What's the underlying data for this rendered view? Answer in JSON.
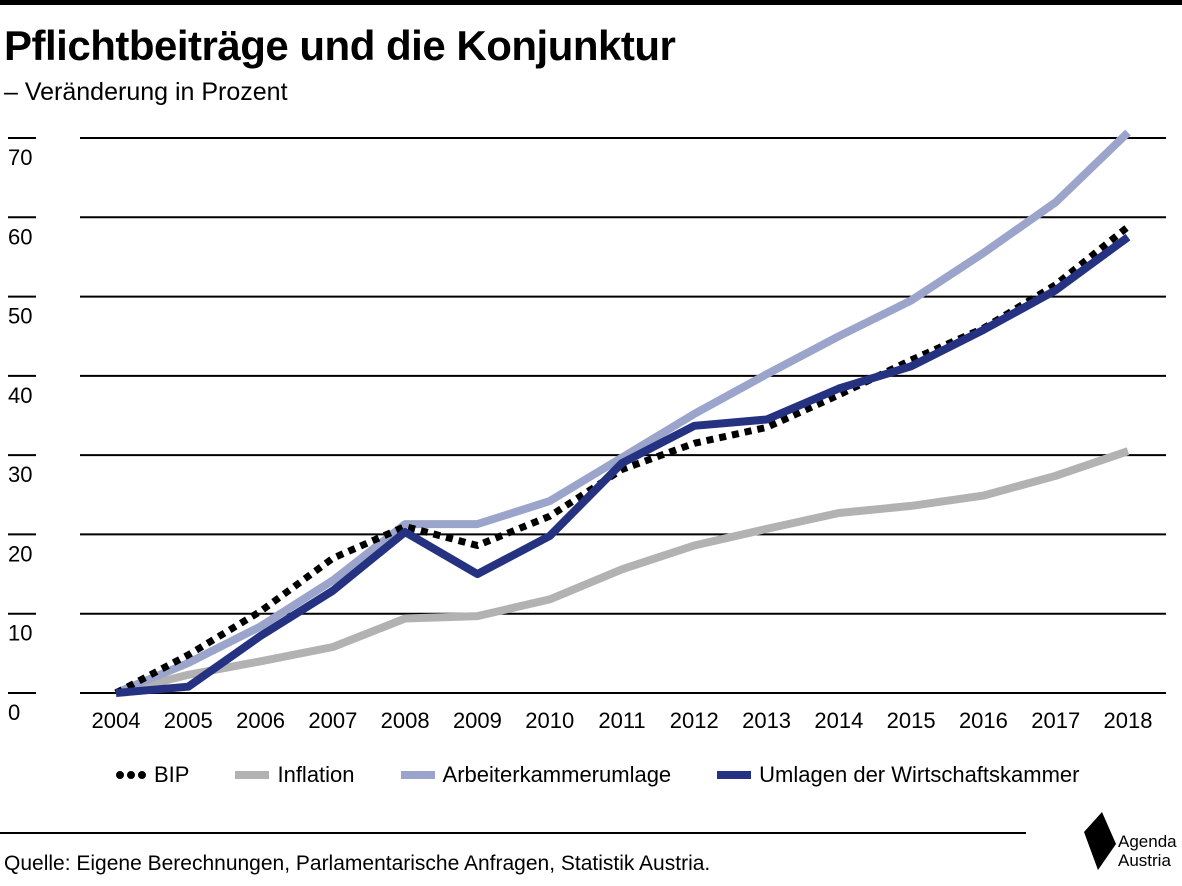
{
  "header": {
    "title": "Pflichtbeiträge und die Konjunktur",
    "subtitle": "– Veränderung in Prozent"
  },
  "chart_data": {
    "type": "line",
    "title": "Pflichtbeiträge und die Konjunktur",
    "subtitle": "– Veränderung in Prozent",
    "xlabel": "",
    "ylabel": "",
    "ylim": [
      0,
      70
    ],
    "yticks": [
      0,
      10,
      20,
      30,
      40,
      50,
      60,
      70
    ],
    "grid": true,
    "legend_position": "bottom",
    "x": [
      "2004",
      "2005",
      "2006",
      "2007",
      "2008",
      "2009",
      "2010",
      "2011",
      "2012",
      "2013",
      "2014",
      "2015",
      "2016",
      "2017",
      "2018"
    ],
    "series": [
      {
        "name": "BIP",
        "color": "#000000",
        "style": "dotted",
        "values": [
          0,
          4.8,
          10.3,
          17.0,
          21.0,
          18.6,
          22.3,
          28.2,
          31.5,
          33.5,
          37.6,
          42.0,
          46.0,
          51.5,
          58.8
        ]
      },
      {
        "name": "Inflation",
        "color": "#b2b2b2",
        "style": "solid",
        "values": [
          0,
          2.3,
          4.0,
          5.8,
          9.4,
          9.7,
          11.8,
          15.6,
          18.6,
          20.7,
          22.7,
          23.6,
          24.9,
          27.4,
          30.5
        ]
      },
      {
        "name": "Arbeiterkammerumlage",
        "color": "#9ba5cc",
        "style": "solid",
        "values": [
          0,
          3.8,
          8.4,
          14.2,
          21.3,
          21.3,
          24.2,
          29.7,
          35.2,
          40.2,
          45.0,
          49.5,
          55.5,
          61.9,
          70.7
        ]
      },
      {
        "name": "Umlagen der Wirtschaftskammer",
        "color": "#253281",
        "style": "solid",
        "values": [
          0,
          0.8,
          7.2,
          12.9,
          20.3,
          15.0,
          19.8,
          29.0,
          33.7,
          34.5,
          38.4,
          41.2,
          45.8,
          50.8,
          57.5
        ]
      }
    ]
  },
  "footer": {
    "source": "Quelle: Eigene Berechnungen, Parlamentarische Anfragen, Statistik Austria."
  },
  "logo": {
    "line1": "Agenda",
    "line2": "Austria"
  }
}
